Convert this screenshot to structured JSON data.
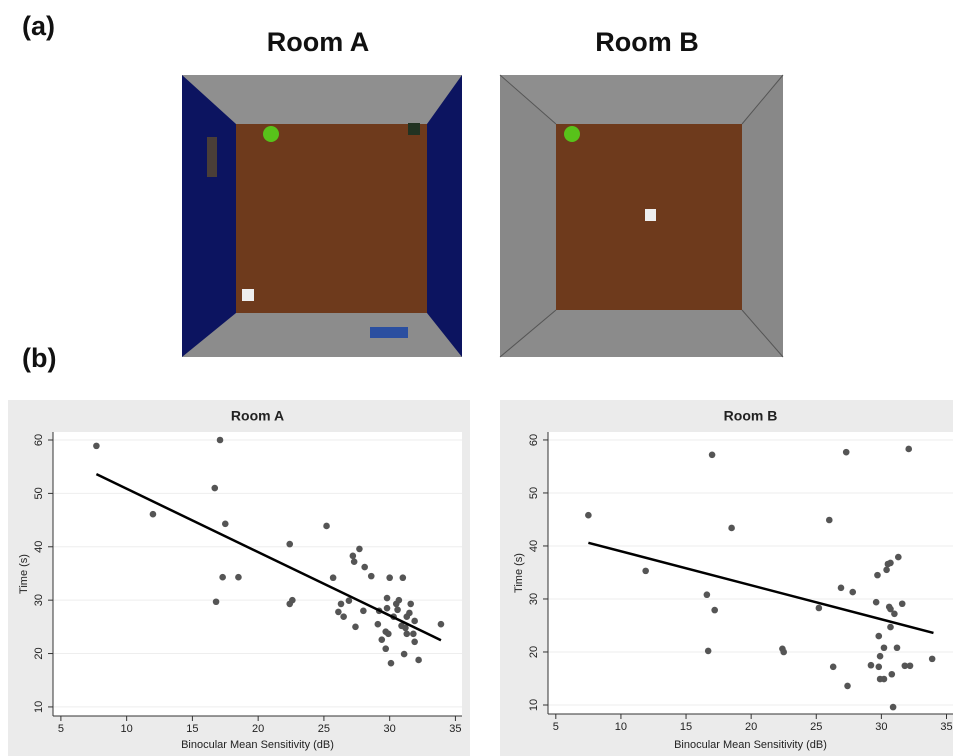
{
  "panel_labels": [
    "(a)",
    "(b)"
  ],
  "rooms": [
    {
      "title": "Room A"
    },
    {
      "title": "Room B"
    }
  ],
  "chart_data": [
    {
      "type": "scatter",
      "title": "Room A",
      "x_label": "Binocular Mean Sensitivity (dB)",
      "y_label": "Time (s)",
      "xlim": [
        4.4,
        35.5
      ],
      "ylim": [
        8.3,
        61.5
      ],
      "xticks": [
        5,
        10,
        15,
        20,
        25,
        30,
        35
      ],
      "yticks": [
        10,
        20,
        30,
        40,
        50,
        60
      ],
      "grid": true,
      "point_color": "#555555",
      "line_color": "#000000",
      "points": {
        "x": [
          7.7,
          12.0,
          16.7,
          17.1,
          17.5,
          16.8,
          17.3,
          18.5,
          22.4,
          22.4,
          22.6,
          25.2,
          25.7,
          26.1,
          26.3,
          26.5,
          26.9,
          27.2,
          27.3,
          27.4,
          27.7,
          28.0,
          28.1,
          28.6,
          29.1,
          29.2,
          29.4,
          29.7,
          29.8,
          29.8,
          29.7,
          29.9,
          30.0,
          30.1,
          30.3,
          30.5,
          30.6,
          30.7,
          30.9,
          31.0,
          31.1,
          31.2,
          31.3,
          31.3,
          31.5,
          31.6,
          31.8,
          31.9,
          32.2,
          31.9,
          33.9
        ],
        "y": [
          58.9,
          46.1,
          51.0,
          60.0,
          44.3,
          29.7,
          34.3,
          34.3,
          40.5,
          29.3,
          30.0,
          43.9,
          34.2,
          27.8,
          29.3,
          26.9,
          29.9,
          38.3,
          37.2,
          25.0,
          39.6,
          28.0,
          36.2,
          34.5,
          25.5,
          28.0,
          22.6,
          24.1,
          30.4,
          28.5,
          20.9,
          23.7,
          34.2,
          18.2,
          26.9,
          29.3,
          28.2,
          30.0,
          25.2,
          34.2,
          19.9,
          24.8,
          23.7,
          26.9,
          27.6,
          29.3,
          23.7,
          26.1,
          18.8,
          22.2,
          25.5
        ]
      },
      "fit": {
        "x": [
          7.7,
          33.9
        ],
        "y": [
          53.6,
          22.5
        ]
      }
    },
    {
      "type": "scatter",
      "title": "Room B",
      "x_label": "Binocular Mean Sensitivity (dB)",
      "y_label": "Time (s)",
      "xlim": [
        4.4,
        35.5
      ],
      "ylim": [
        8.3,
        61.5
      ],
      "xticks": [
        5,
        10,
        15,
        20,
        25,
        30,
        35
      ],
      "yticks": [
        10,
        20,
        30,
        40,
        50,
        60
      ],
      "grid": true,
      "point_color": "#555555",
      "line_color": "#000000",
      "points": {
        "x": [
          7.5,
          11.9,
          17.0,
          16.6,
          16.7,
          17.2,
          18.5,
          22.4,
          22.5,
          25.2,
          26.0,
          26.3,
          26.9,
          27.3,
          27.4,
          27.8,
          29.2,
          29.6,
          29.7,
          29.8,
          29.8,
          29.9,
          29.9,
          30.2,
          30.2,
          30.4,
          30.5,
          30.6,
          30.7,
          30.7,
          30.7,
          30.8,
          30.9,
          31.0,
          31.2,
          31.3,
          31.6,
          31.8,
          32.1,
          32.2,
          33.9
        ],
        "y": [
          45.8,
          35.3,
          57.2,
          30.8,
          20.2,
          27.9,
          43.4,
          20.6,
          20.0,
          28.3,
          44.9,
          17.2,
          32.1,
          57.7,
          13.6,
          31.3,
          17.5,
          29.4,
          34.5,
          23.0,
          17.2,
          19.2,
          14.9,
          14.9,
          20.8,
          35.5,
          36.6,
          28.5,
          36.8,
          28.1,
          24.7,
          15.8,
          9.6,
          27.2,
          20.8,
          37.9,
          29.1,
          17.4,
          58.3,
          17.4,
          18.7
        ]
      },
      "fit": {
        "x": [
          7.5,
          34.0
        ],
        "y": [
          40.6,
          23.6
        ]
      }
    }
  ]
}
